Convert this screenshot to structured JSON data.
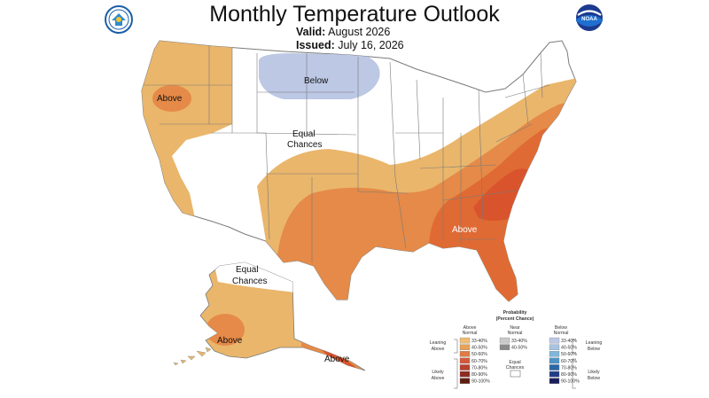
{
  "header": {
    "title": "Monthly Temperature Outlook",
    "valid_label": "Valid:",
    "valid_value": "August 2026",
    "issued_label": "Issued:",
    "issued_value": "July 16, 2026"
  },
  "logos": {
    "left": "commerce-seal-icon",
    "right": "noaa-logo-icon",
    "right_text": "NOAA"
  },
  "map_labels": {
    "above_west": "Above",
    "below_north": "Below",
    "equal_line1": "Equal",
    "equal_line2": "Chances",
    "above_southeast": "Above",
    "alaska_equal_line1": "Equal",
    "alaska_equal_line2": "Chances",
    "alaska_above": "Above",
    "alaska_above_panhandle": "Above"
  },
  "legend": {
    "title_line1": "Probability",
    "title_line2": "(Percent Chance)",
    "above": {
      "header_line1": "Above",
      "header_line2": "Normal",
      "items": [
        "33-40%",
        "40-50%",
        "50-60%",
        "60-70%",
        "70-80%",
        "80-90%",
        "90-100%"
      ],
      "colors": [
        "#f0bc73",
        "#e8a258",
        "#e07b45",
        "#d4583b",
        "#b8412f",
        "#8e2c20",
        "#5e1e12"
      ],
      "leaning": [
        "Leaning",
        "Above"
      ],
      "likely": [
        "Likely",
        "Above"
      ]
    },
    "near": {
      "header_line1": "Near",
      "header_line2": "Normal",
      "items": [
        "33-40%",
        "40-50%"
      ],
      "colors": [
        "#c9c9c9",
        "#8a8a8a"
      ]
    },
    "equal": {
      "label_line1": "Equal",
      "label_line2": "Chances"
    },
    "below": {
      "header_line1": "Below",
      "header_line2": "Normal",
      "items": [
        "33-40%",
        "40-50%",
        "50-60%",
        "60-70%",
        "70-80%",
        "80-90%",
        "90-100%"
      ],
      "colors": [
        "#bcc8e4",
        "#a7c4e0",
        "#80b6dc",
        "#4c93c6",
        "#2a67a8",
        "#213d86",
        "#1a1f5c"
      ],
      "leaning": [
        "Leaning",
        "Below"
      ],
      "likely": [
        "Likely",
        "Below"
      ]
    }
  },
  "colors": {
    "leaning_above": "#eab66b",
    "above_40_50": "#e58a48",
    "above_50_60": "#e06a33",
    "above_60_70": "#d9542d",
    "below_33_40": "#bcc8e4",
    "equal_chances": "#ffffff",
    "border": "#7a7a7a"
  }
}
